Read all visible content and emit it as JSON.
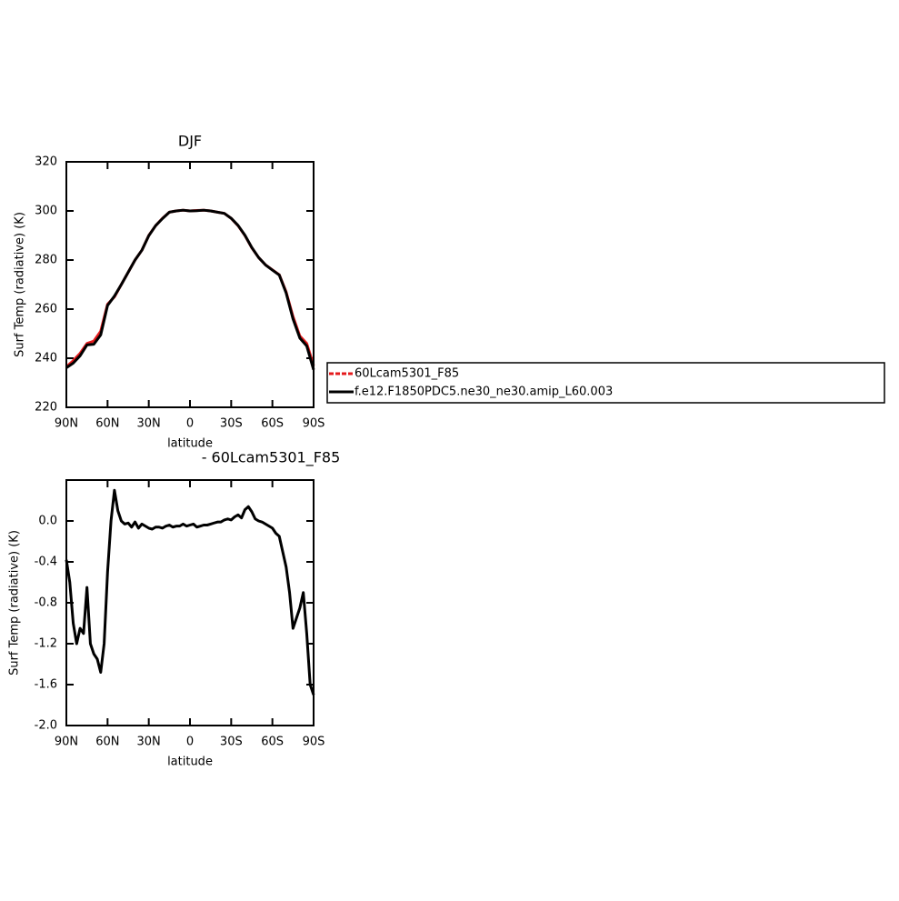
{
  "chart_data": [
    {
      "type": "line",
      "title": "DJF",
      "x_label": "latitude",
      "y_label": "Surf Temp (radiative) (K)",
      "x": [
        90,
        85,
        80,
        75,
        70,
        65,
        60,
        55,
        50,
        45,
        40,
        35,
        30,
        25,
        20,
        15,
        10,
        5,
        0,
        -5,
        -10,
        -15,
        -20,
        -25,
        -30,
        -35,
        -40,
        -45,
        -50,
        -55,
        -60,
        -65,
        -70,
        -75,
        -80,
        -85,
        -90
      ],
      "series": [
        {
          "name": "60Lcam5301_F85",
          "color": "#e41a1c",
          "values": [
            236.5,
            239,
            242,
            246,
            247,
            251,
            262,
            265,
            270,
            275,
            280,
            284,
            290,
            294,
            297,
            299.5,
            300,
            300.3,
            300,
            300.2,
            300.3,
            300,
            299.5,
            299,
            297,
            294,
            290,
            285,
            281,
            278,
            276,
            274,
            267,
            257,
            249,
            246,
            237
          ]
        },
        {
          "name": "f.e12.F1850PDC5.ne30_ne30.amip_L60.003",
          "color": "#000000",
          "values": [
            236.1,
            238,
            241,
            245.4,
            245.7,
            249.5,
            261.5,
            265.3,
            270,
            275,
            280,
            284,
            289.9,
            294,
            296.9,
            299.5,
            300,
            300.3,
            300,
            300.1,
            300.3,
            300,
            299.5,
            299,
            297,
            294.1,
            290.1,
            285.1,
            281,
            278,
            275.9,
            273.9,
            266.6,
            256,
            248.2,
            245,
            235.3
          ]
        }
      ],
      "xlim": [
        90,
        -90
      ],
      "xticks": [
        {
          "value": 90,
          "label": "90N"
        },
        {
          "value": 60,
          "label": "60N"
        },
        {
          "value": 30,
          "label": "30N"
        },
        0,
        {
          "value": -30,
          "label": "30S"
        },
        {
          "value": -60,
          "label": "60S"
        },
        {
          "value": -90,
          "label": "90S"
        }
      ],
      "ylim": [
        220,
        320
      ],
      "yticks": [
        220,
        240,
        260,
        280,
        300,
        320
      ],
      "legend": "outside right"
    },
    {
      "type": "line",
      "title": "- 60Lcam5301_F85",
      "x_label": "latitude",
      "y_label": "Surf Temp (radiative) (K)",
      "x": [
        90,
        87.5,
        85,
        82.5,
        80,
        77.5,
        75,
        72.5,
        70,
        67.5,
        65,
        62.5,
        60,
        57.5,
        55,
        52.5,
        50,
        47.5,
        45,
        42.5,
        40,
        37.5,
        35,
        32.5,
        30,
        27.5,
        25,
        22.5,
        20,
        17.5,
        15,
        12.5,
        10,
        7.5,
        5,
        2.5,
        0,
        -2.5,
        -5,
        -7.5,
        -10,
        -12.5,
        -15,
        -17.5,
        -20,
        -22.5,
        -25,
        -27.5,
        -30,
        -32.5,
        -35,
        -37.5,
        -40,
        -42.5,
        -45,
        -47.5,
        -50,
        -52.5,
        -55,
        -57.5,
        -60,
        -62.5,
        -65,
        -67.5,
        -70,
        -72.5,
        -75,
        -77.5,
        -80,
        -82.5,
        -85,
        -87.5,
        -90
      ],
      "series": [
        {
          "color": "#000000",
          "values": [
            -0.38,
            -0.6,
            -1.0,
            -1.2,
            -1.05,
            -1.1,
            -0.65,
            -1.2,
            -1.3,
            -1.35,
            -1.48,
            -1.2,
            -0.5,
            0.0,
            0.3,
            0.1,
            0.0,
            -0.03,
            -0.02,
            -0.06,
            -0.01,
            -0.07,
            -0.03,
            -0.05,
            -0.07,
            -0.08,
            -0.06,
            -0.06,
            -0.07,
            -0.05,
            -0.04,
            -0.06,
            -0.05,
            -0.05,
            -0.03,
            -0.05,
            -0.04,
            -0.03,
            -0.06,
            -0.05,
            -0.04,
            -0.04,
            -0.03,
            -0.02,
            -0.01,
            -0.01,
            0.01,
            0.02,
            0.01,
            0.04,
            0.06,
            0.03,
            0.11,
            0.14,
            0.09,
            0.02,
            0.0,
            -0.01,
            -0.03,
            -0.05,
            -0.07,
            -0.12,
            -0.15,
            -0.3,
            -0.45,
            -0.7,
            -1.05,
            -0.95,
            -0.85,
            -0.7,
            -1.1,
            -1.6,
            -1.7
          ]
        }
      ],
      "xlim": [
        90,
        -90
      ],
      "xticks": [
        {
          "value": 90,
          "label": "90N"
        },
        {
          "value": 60,
          "label": "60N"
        },
        {
          "value": 30,
          "label": "30N"
        },
        0,
        {
          "value": -30,
          "label": "30S"
        },
        {
          "value": -60,
          "label": "60S"
        },
        {
          "value": -90,
          "label": "90S"
        }
      ],
      "ylim": [
        -2.0,
        0.4
      ],
      "yticks": [
        {
          "value": -2.0,
          "label": "-2.0"
        },
        -1.6,
        -1.2,
        -0.8,
        -0.4,
        {
          "value": 0.0,
          "label": "0.0"
        }
      ]
    }
  ]
}
